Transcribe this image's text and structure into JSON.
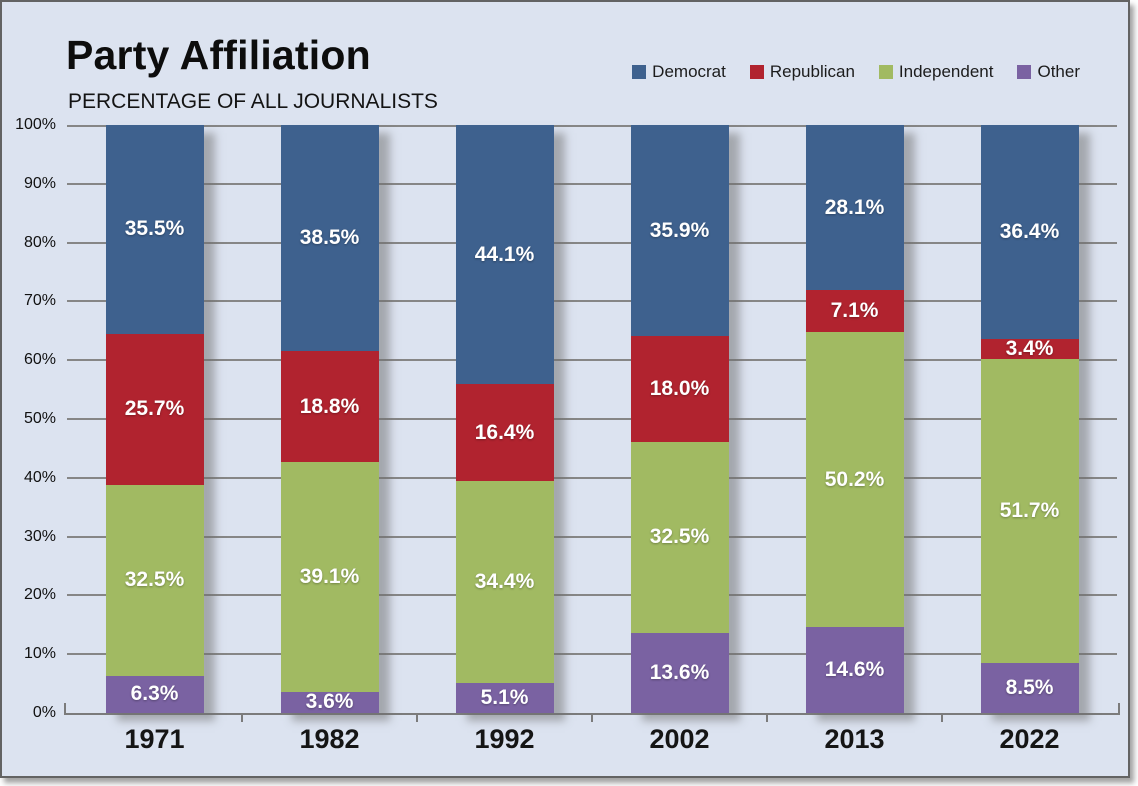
{
  "title": "Party Affiliation",
  "subtitle": "PERCENTAGE OF ALL JOURNALISTS",
  "colors": {
    "background": "#dce3f0",
    "frame_border": "#636363",
    "gridline": "#868686",
    "axis": "#7b7b7b",
    "value_text": "#ffffff"
  },
  "chart_data": {
    "type": "bar",
    "stacked": true,
    "title": "Party Affiliation",
    "subtitle": "PERCENTAGE OF ALL JOURNALISTS",
    "categories": [
      "1971",
      "1982",
      "1992",
      "2002",
      "2013",
      "2022"
    ],
    "series": [
      {
        "name": "Democrat",
        "color": "#3e618e",
        "values": [
          35.5,
          38.5,
          44.1,
          35.9,
          28.1,
          36.4
        ],
        "labels": [
          "35.5%",
          "38.5%",
          "44.1%",
          "35.9%",
          "28.1%",
          "36.4%"
        ]
      },
      {
        "name": "Republican",
        "color": "#b1232f",
        "values": [
          25.7,
          18.8,
          16.4,
          18.0,
          7.1,
          3.4
        ],
        "labels": [
          "25.7%",
          "18.8%",
          "16.4%",
          "18.0%",
          "7.1%",
          "3.4%"
        ]
      },
      {
        "name": "Independent",
        "color": "#a1ba62",
        "values": [
          32.5,
          39.1,
          34.4,
          32.5,
          50.2,
          51.7
        ],
        "labels": [
          "32.5%",
          "39.1%",
          "34.4%",
          "32.5%",
          "50.2%",
          "51.7%"
        ]
      },
      {
        "name": "Other",
        "color": "#7a62a2",
        "values": [
          6.3,
          3.6,
          5.1,
          13.6,
          14.6,
          8.5
        ],
        "labels": [
          "6.3%",
          "3.6%",
          "5.1%",
          "13.6%",
          "14.6%",
          "8.5%"
        ]
      }
    ],
    "stack_order_top_to_bottom": [
      "Democrat",
      "Republican",
      "Independent",
      "Other"
    ],
    "xlabel": "",
    "ylabel": "",
    "ylim": [
      0,
      100
    ],
    "yticks": [
      "0%",
      "10%",
      "20%",
      "30%",
      "40%",
      "50%",
      "60%",
      "70%",
      "80%",
      "90%",
      "100%"
    ],
    "grid": true,
    "legend_position": "top-right",
    "value_labels": "centered-white-bold"
  }
}
